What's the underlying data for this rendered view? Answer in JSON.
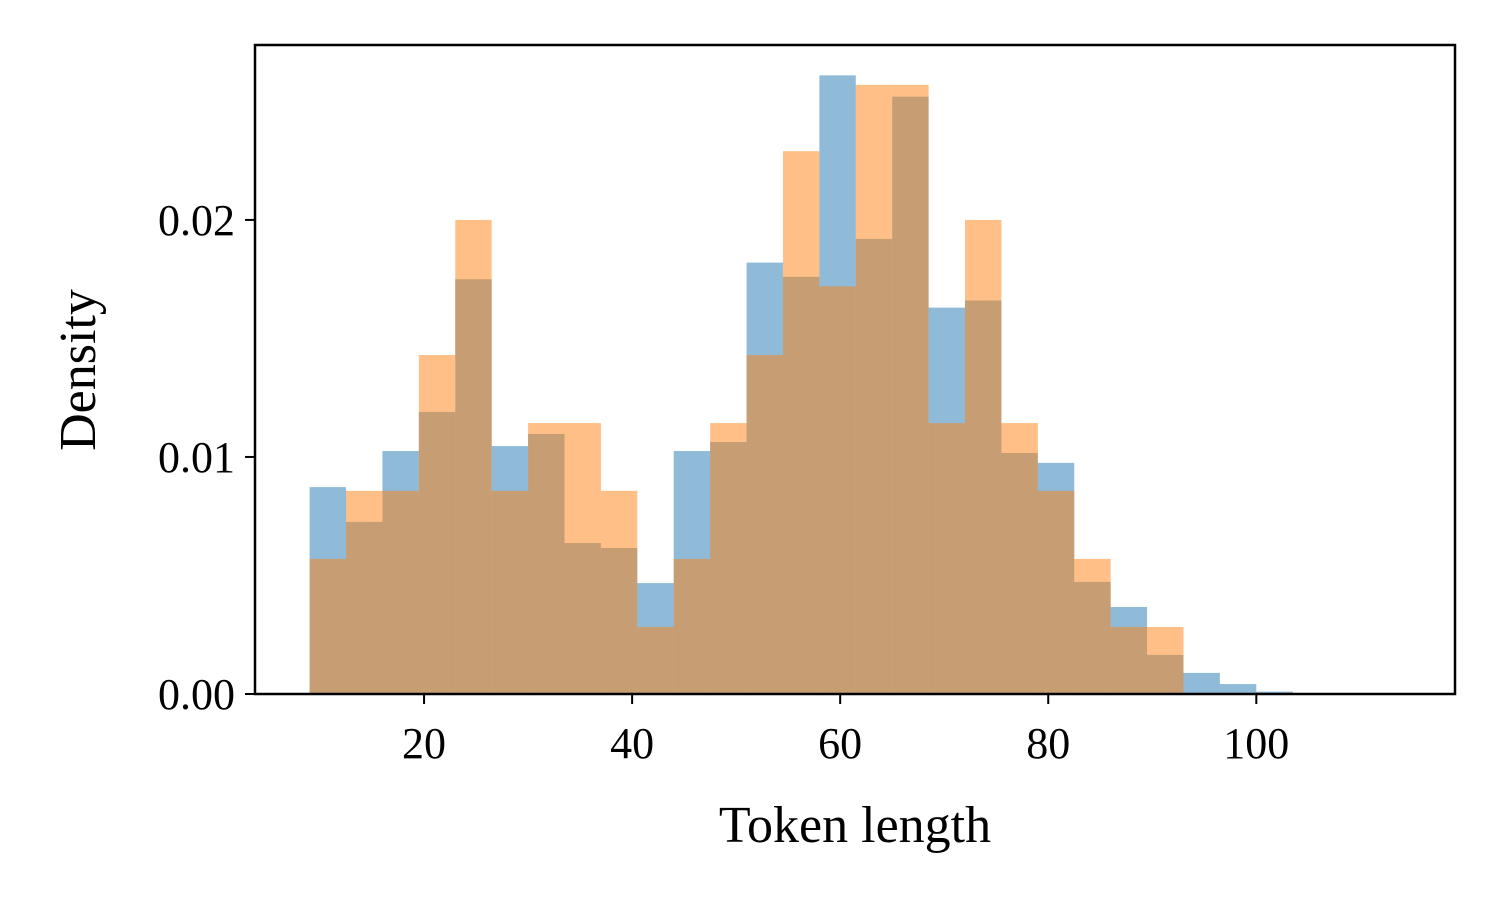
{
  "chart_data": {
    "type": "histogram",
    "xlabel": "Token length",
    "ylabel": "Density",
    "bins": [
      9,
      12.5,
      16,
      19.5,
      23,
      26.5,
      30,
      33.5,
      37,
      40.5,
      44,
      47.5,
      51,
      54.5,
      58,
      61.5,
      65,
      68.5,
      72,
      75.5,
      79,
      82.5,
      86,
      89.5,
      93,
      96.5,
      100,
      103.5,
      107,
      110.5,
      114
    ],
    "series": [
      {
        "color": "#1f77b4",
        "values": [
          0.00873,
          0.00726,
          0.01025,
          0.0119,
          0.0175,
          0.01046,
          0.01097,
          0.00637,
          0.00616,
          0.00468,
          0.01025,
          0.01063,
          0.0182,
          0.0176,
          0.0261,
          0.0192,
          0.0252,
          0.0163,
          0.0166,
          0.01017,
          0.00975,
          0.00473,
          0.00367,
          0.00165,
          0.00089,
          0.00042,
          0.0001,
          0,
          0,
          0
        ]
      },
      {
        "color": "#ff7f0e",
        "values": [
          0.0057,
          0.00857,
          0.00857,
          0.0143,
          0.02,
          0.00857,
          0.01143,
          0.01143,
          0.00857,
          0.00283,
          0.0057,
          0.01143,
          0.0143,
          0.0229,
          0.0172,
          0.0257,
          0.0257,
          0.01143,
          0.02,
          0.01143,
          0.00857,
          0.0057,
          0.00283,
          0.00283,
          0,
          0,
          0,
          0,
          0,
          0
        ]
      }
    ],
    "opacity": 0.5,
    "xlim": [
      3.75,
      119.1
    ],
    "ylim": [
      0,
      0.02738
    ],
    "xticks": [
      20,
      40,
      60,
      80,
      100
    ],
    "yticks": [
      {
        "value": 0,
        "label": "0.00"
      },
      0.01,
      0.02
    ]
  }
}
